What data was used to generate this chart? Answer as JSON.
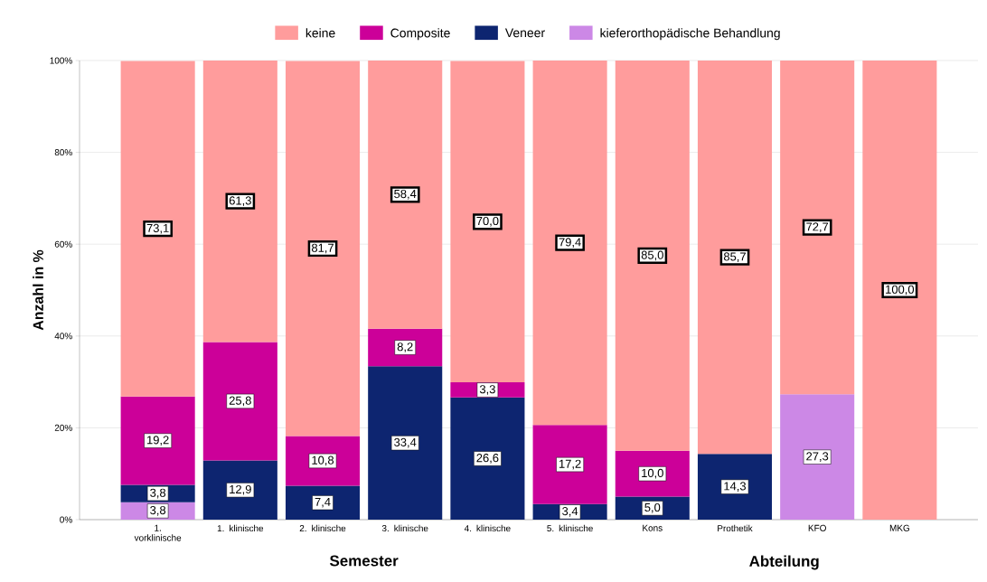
{
  "chart_data": {
    "type": "bar",
    "stacked": true,
    "ylabel": "Anzahl in %",
    "xlabel": "Semester",
    "annotations": [
      "Abteilung"
    ],
    "categories": [
      "1. vorklinische",
      "1. klinische",
      "2. klinische",
      "3. klinische",
      "4. klinische",
      "5. klinische",
      "Kons",
      "Prothetik",
      "KFO",
      "MKG"
    ],
    "series": [
      {
        "name": "kieferorthopädische Behandlung",
        "color": "#cc88e6",
        "values": [
          3.8,
          null,
          null,
          null,
          null,
          null,
          null,
          null,
          27.3,
          null
        ],
        "value_labels": [
          "3,8",
          null,
          null,
          null,
          null,
          null,
          null,
          null,
          "27,3",
          null
        ]
      },
      {
        "name": "Veneer",
        "color": "#0d2570",
        "values": [
          3.8,
          12.9,
          7.4,
          33.4,
          26.6,
          3.4,
          5.0,
          14.3,
          null,
          null
        ],
        "value_labels": [
          "3,8",
          "12,9",
          "7,4",
          "33,4",
          "26,6",
          "3,4",
          "5,0",
          "14,3",
          null,
          null
        ]
      },
      {
        "name": "Composite",
        "color": "#cc0099",
        "values": [
          19.2,
          25.8,
          10.8,
          8.2,
          3.3,
          17.2,
          10.0,
          null,
          null,
          null
        ],
        "value_labels": [
          "19,2",
          "25,8",
          "10,8",
          "8,2",
          "3,3",
          "17,2",
          "10,0",
          null,
          null,
          null
        ]
      },
      {
        "name": "keine",
        "color": "#ff9c9c",
        "values": [
          73.1,
          61.3,
          81.7,
          58.4,
          70.0,
          79.4,
          85.0,
          85.7,
          72.7,
          100.0
        ],
        "value_labels": [
          "73,1",
          "61,3",
          "81,7",
          "58,4",
          "70,0",
          "79,4",
          "85,0",
          "85,7",
          "72,7",
          "100,0"
        ]
      }
    ],
    "ylim": [
      0,
      100
    ],
    "yticks": [
      {
        "value": 0,
        "label": "0%"
      },
      {
        "value": 20,
        "label": "20%"
      },
      {
        "value": 40,
        "label": "40%"
      },
      {
        "value": 60,
        "label": "60%"
      },
      {
        "value": 80,
        "label": "80%"
      },
      {
        "value": 100,
        "label": "100%"
      }
    ],
    "grid": "y",
    "legend": "top"
  }
}
